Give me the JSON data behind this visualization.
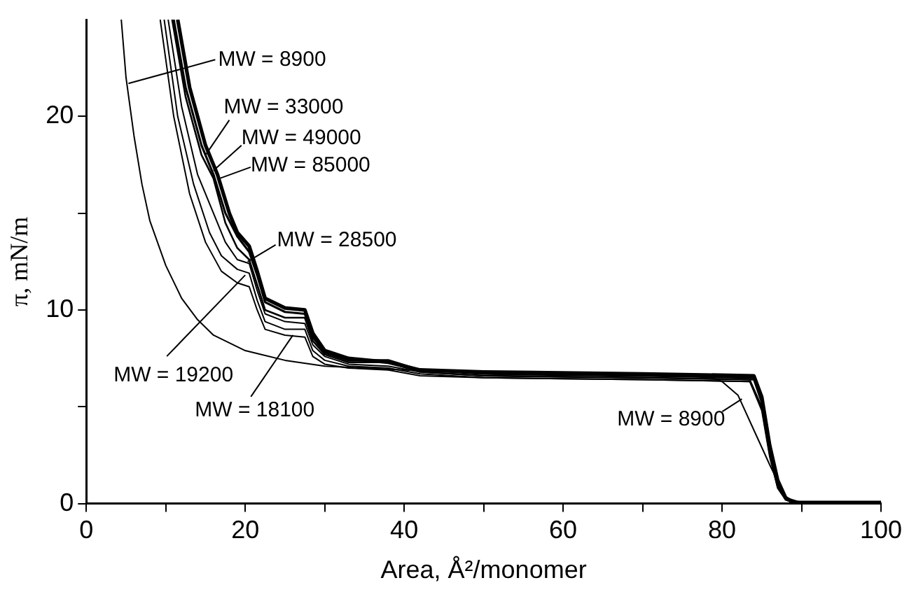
{
  "chart_data": {
    "type": "line",
    "xlabel": "Area, Å²/monomer",
    "ylabel": "π, mN/m",
    "xlim": [
      0,
      100
    ],
    "ylim": [
      0,
      25
    ],
    "xticks": [
      0,
      {
        "value": 10,
        "label": null
      },
      20,
      {
        "value": 30,
        "label": null
      },
      40,
      {
        "value": 50,
        "label": null
      },
      60,
      {
        "value": 70,
        "label": null
      },
      80,
      {
        "value": 90,
        "label": null
      },
      100
    ],
    "yticks": [
      0,
      {
        "value": 5,
        "label": null
      },
      10,
      {
        "value": 15,
        "label": null
      },
      20
    ],
    "grid": false,
    "legend": false,
    "marker": "none",
    "line_style": "solid",
    "series": [
      {
        "color": "#000000",
        "x": [
          4.4,
          5,
          6,
          7,
          8,
          10,
          12,
          14,
          16,
          20,
          25,
          30,
          40,
          60,
          78,
          80,
          82,
          84,
          86,
          88,
          90,
          100
        ],
        "values": [
          25,
          22,
          19,
          16.5,
          14.6,
          12.3,
          10.6,
          9.5,
          8.7,
          7.9,
          7.4,
          7.1,
          6.9,
          6.7,
          6.6,
          6.3,
          5.6,
          3.8,
          2.0,
          0.3,
          0.05,
          0.05
        ]
      },
      {
        "color": "#000000",
        "x": [
          9.3,
          11,
          13,
          15,
          17,
          19,
          20.5,
          21.5,
          22.5,
          25,
          27.5,
          28.5,
          30,
          33,
          38,
          42,
          50,
          70,
          83.5,
          85,
          86,
          87,
          88,
          89,
          100
        ],
        "values": [
          25,
          20,
          16,
          13.5,
          12,
          11.4,
          11.2,
          10,
          9,
          8.7,
          8.6,
          7.6,
          7.2,
          7.0,
          6.9,
          6.6,
          6.5,
          6.4,
          6.3,
          4.8,
          2.4,
          0.8,
          0.2,
          0.05,
          0.05
        ]
      },
      {
        "color": "#000000",
        "x": [
          9.8,
          11.5,
          13.5,
          15.5,
          17,
          19,
          20.5,
          21.5,
          22.5,
          25,
          27.5,
          28.5,
          30,
          33,
          38,
          42,
          50,
          70,
          83.5,
          85,
          86,
          87,
          88,
          89,
          100
        ],
        "values": [
          25,
          20,
          16.5,
          14,
          12.8,
          12.1,
          11.9,
          10.5,
          9.4,
          9.0,
          9.0,
          7.9,
          7.4,
          7.1,
          7.0,
          6.7,
          6.5,
          6.4,
          6.3,
          4.9,
          2.5,
          0.8,
          0.2,
          0.05,
          0.05
        ]
      },
      {
        "color": "#000000",
        "x": [
          10.3,
          12,
          14,
          16,
          17.5,
          19,
          20.5,
          21.5,
          22.5,
          25,
          27.5,
          28.5,
          30,
          33,
          38,
          42,
          50,
          70,
          83.5,
          85,
          86,
          87,
          88,
          89,
          100
        ],
        "values": [
          25,
          20.5,
          17,
          15,
          13.5,
          12.6,
          12.4,
          11,
          9.8,
          9.4,
          9.3,
          8.2,
          7.6,
          7.2,
          7.1,
          6.8,
          6.6,
          6.5,
          6.4,
          5,
          2.6,
          0.9,
          0.2,
          0.05,
          0.05
        ]
      },
      {
        "color": "#000000",
        "x": [
          10.8,
          12.5,
          14.5,
          16,
          17.5,
          19,
          20.5,
          21.5,
          22.5,
          25,
          27.5,
          28.5,
          30,
          33,
          38,
          42,
          50,
          70,
          84,
          85,
          86,
          87,
          88,
          89,
          100
        ],
        "values": [
          25,
          21,
          18,
          16.8,
          14.5,
          13.2,
          12.6,
          11.3,
          10,
          9.6,
          9.6,
          8.4,
          7.7,
          7.3,
          7.3,
          6.8,
          6.6,
          6.5,
          6.4,
          5.2,
          2.7,
          1,
          0.2,
          0.05,
          0.05
        ]
      },
      {
        "color": "#000000",
        "x": [
          11,
          12.5,
          14.5,
          16,
          17.5,
          19,
          20.5,
          21.5,
          22.5,
          25,
          27.5,
          28.5,
          30,
          33,
          38,
          42,
          50,
          70,
          84,
          85,
          86,
          87,
          88,
          89,
          100
        ],
        "values": [
          25,
          21.5,
          18.5,
          17,
          15,
          13.8,
          13,
          11.8,
          10.4,
          9.9,
          9.8,
          8.6,
          7.8,
          7.4,
          7.4,
          6.9,
          6.7,
          6.6,
          6.5,
          5.3,
          2.8,
          1.0,
          0.3,
          0.05,
          0.05
        ]
      },
      {
        "color": "#000000",
        "x": [
          11.5,
          13,
          15,
          16.5,
          18,
          19,
          20.5,
          21.5,
          22.5,
          25,
          27.5,
          28.5,
          30,
          33,
          38,
          42,
          50,
          70,
          84,
          85,
          86,
          87,
          88,
          89,
          100
        ],
        "values": [
          25,
          21.5,
          18.5,
          17,
          15,
          14,
          13.3,
          12,
          10.6,
          10.1,
          10,
          8.8,
          7.9,
          7.5,
          7.3,
          6.9,
          6.8,
          6.7,
          6.6,
          5.5,
          3,
          1.2,
          0.3,
          0.05,
          0.05
        ]
      }
    ],
    "annotations": [
      {
        "text": "MW = 8900",
        "x": 5.3,
        "y": 21.7
      },
      {
        "text": "MW = 33000",
        "x": 15,
        "y": 18
      },
      {
        "text": "MW = 49000",
        "x": 16,
        "y": 17.2
      },
      {
        "text": "MW = 85000",
        "x": 16.8,
        "y": 16.8
      },
      {
        "text": "MW = 28500",
        "x": 20.3,
        "y": 12.5
      },
      {
        "text": "MW = 19200",
        "x": 20,
        "y": 11.8
      },
      {
        "text": "MW = 18100",
        "x": 26,
        "y": 8.7
      },
      {
        "text": "MW = 8900",
        "x": 82.5,
        "y": 5.4
      }
    ]
  }
}
